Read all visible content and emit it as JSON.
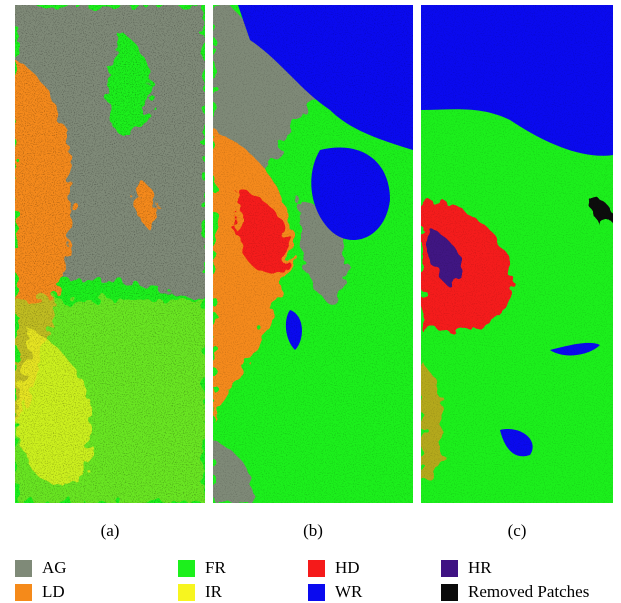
{
  "panels": [
    {
      "label": "(a)"
    },
    {
      "label": "(b)"
    },
    {
      "label": "(c)"
    }
  ],
  "legend": [
    {
      "label": "AG",
      "color": "#7f8a78"
    },
    {
      "label": "FR",
      "color": "#1cf01c"
    },
    {
      "label": "HD",
      "color": "#f51a1a"
    },
    {
      "label": "HR",
      "color": "#3f1283"
    },
    {
      "label": "LD",
      "color": "#f58a1a"
    },
    {
      "label": "IR",
      "color": "#f7f51f"
    },
    {
      "label": "WR",
      "color": "#0a0aef"
    },
    {
      "label": "Removed Patches",
      "color": "#0a0a0a"
    }
  ]
}
